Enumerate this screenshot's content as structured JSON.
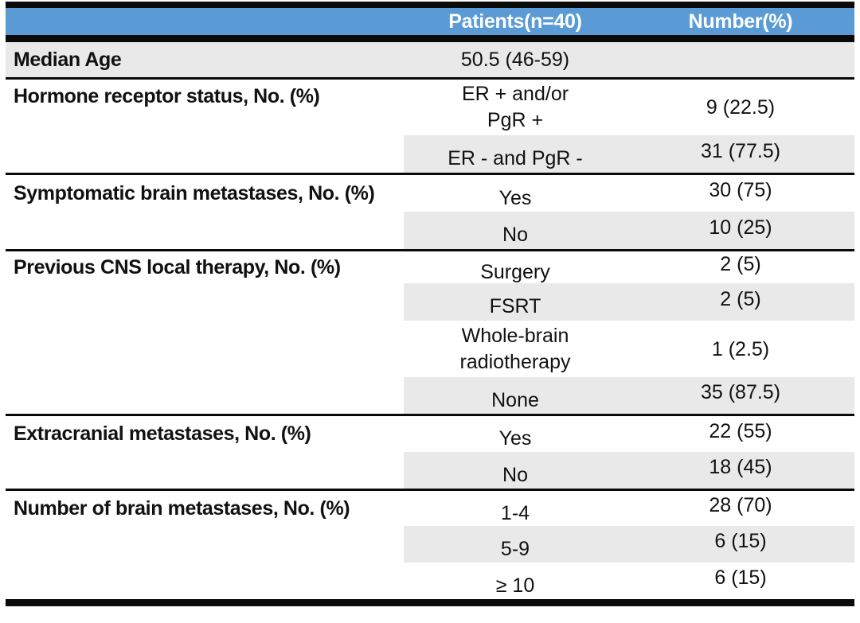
{
  "colors": {
    "header_bg": "#5B9BD5",
    "header_text": "#FFFFFF",
    "row_shade": "#E9E9E9",
    "border": "#0A0A0A",
    "text": "#111111"
  },
  "table": {
    "header": {
      "patients": "Patients(n=40)",
      "number": "Number(%)"
    },
    "sections": [
      {
        "label": "Median Age",
        "rows": [
          {
            "patients": "50.5 (46-59)",
            "number": ""
          }
        ]
      },
      {
        "label": "Hormone receptor status, No. (%)",
        "rows": [
          {
            "patients": "ER + and/or\nPgR +",
            "number": "9 (22.5)"
          },
          {
            "patients": "ER - and PgR -",
            "number": "31 (77.5)"
          }
        ]
      },
      {
        "label": "Symptomatic brain metastases, No. (%)",
        "rows": [
          {
            "patients": "Yes",
            "number": "30 (75)"
          },
          {
            "patients": "No",
            "number": "10 (25)"
          }
        ]
      },
      {
        "label": "Previous CNS local therapy, No. (%)",
        "rows": [
          {
            "patients": "Surgery",
            "number": "2 (5)"
          },
          {
            "patients": "FSRT",
            "number": "2 (5)"
          },
          {
            "patients": "Whole-brain\nradiotherapy",
            "number": "1 (2.5)"
          },
          {
            "patients": "None",
            "number": "35 (87.5)"
          }
        ]
      },
      {
        "label": "Extracranial metastases, No. (%)",
        "rows": [
          {
            "patients": "Yes",
            "number": "22 (55)"
          },
          {
            "patients": "No",
            "number": "18 (45)"
          }
        ]
      },
      {
        "label": "Number of brain metastases, No. (%)",
        "rows": [
          {
            "patients": "1-4",
            "number": "28 (70)"
          },
          {
            "patients": "5-9",
            "number": "6 (15)"
          },
          {
            "patients": "≥ 10",
            "number": "6 (15)"
          }
        ]
      }
    ]
  }
}
